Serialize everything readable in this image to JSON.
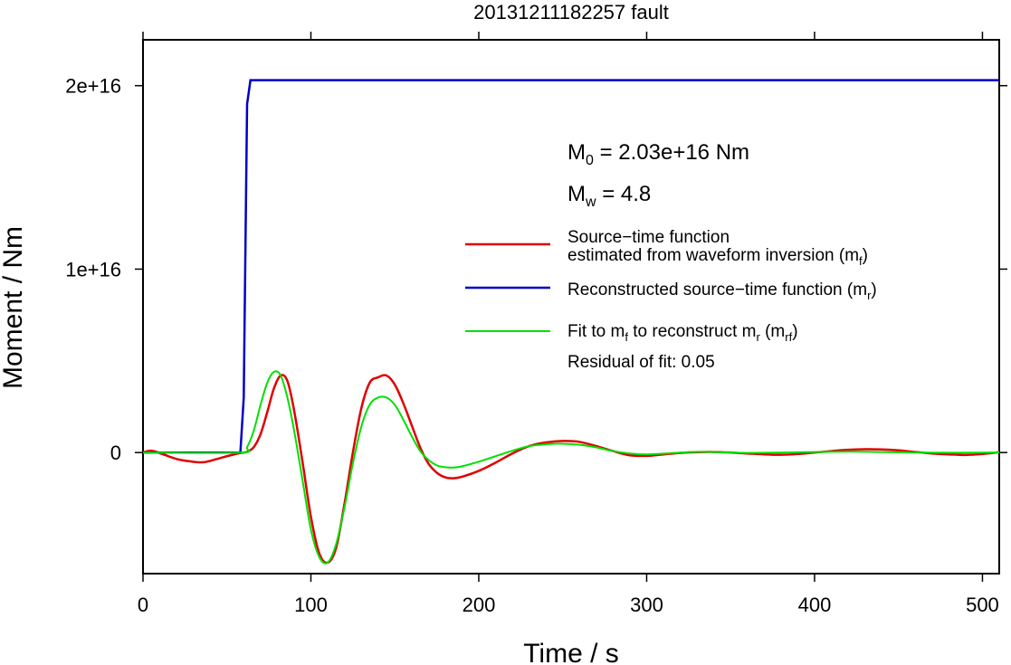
{
  "title": "20131211182257 fault",
  "chart_data": {
    "type": "line",
    "xlabel": "Time / s",
    "ylabel": "Moment / Nm",
    "xlim": [
      0,
      510
    ],
    "ylim": [
      -6600000000000000.0,
      2.25e+16
    ],
    "xticks": [
      0,
      100,
      200,
      300,
      400,
      500
    ],
    "xtick_labels": [
      "0",
      "100",
      "200",
      "300",
      "400",
      "500"
    ],
    "yticks": [
      0,
      1e+16,
      2e+16
    ],
    "ytick_labels": [
      "0",
      "1e+16",
      "2e+16"
    ],
    "grid": false,
    "legend_position": "right",
    "annotations": {
      "m0_symbol": "M",
      "m0_sub": "0",
      "m0_value": " = 2.03e+16 Nm",
      "mw_symbol": "M",
      "mw_sub": "w",
      "mw_value": " = 4.8",
      "residual": "Residual of fit: 0.05"
    },
    "legend": [
      {
        "key": "mf",
        "color": "#e00000",
        "line1": "Source−time function",
        "line2_pre": "estimated from waveform inversion (m",
        "line2_sub": "f",
        "line2_post": ")"
      },
      {
        "key": "mr",
        "color": "#0000c8",
        "line1_pre": "Reconstructed source−time function (m",
        "line1_sub": "r",
        "line1_post": ")"
      },
      {
        "key": "mrf",
        "color": "#00e000",
        "line1_pre": "Fit to m",
        "line1_sub1": "f",
        "line1_mid": " to reconstruct m",
        "line1_sub2": "r",
        "line1_mid2": " (m",
        "line1_sub3": "rf",
        "line1_post": ")"
      }
    ],
    "series": [
      {
        "key": "mf",
        "color": "#e00000",
        "x": [
          0,
          5,
          12,
          20,
          28,
          36,
          44,
          52,
          58,
          62,
          66,
          70,
          74,
          78,
          82,
          86,
          90,
          95,
          100,
          105,
          110,
          115,
          120,
          125,
          130,
          135,
          140,
          145,
          150,
          155,
          160,
          165,
          170,
          175,
          180,
          185,
          190,
          200,
          210,
          220,
          230,
          240,
          250,
          260,
          270,
          280,
          290,
          300,
          310,
          320,
          330,
          340,
          350,
          360,
          370,
          380,
          390,
          400,
          410,
          420,
          430,
          440,
          450,
          460,
          470,
          480,
          490,
          500,
          510
        ],
        "y": [
          0,
          100000000000000.0,
          -100000000000000.0,
          -350000000000000.0,
          -480000000000000.0,
          -530000000000000.0,
          -350000000000000.0,
          -150000000000000.0,
          -20000000000000.0,
          40000000000000.0,
          300000000000000.0,
          1000000000000000.0,
          2200000000000000.0,
          3500000000000000.0,
          4200000000000000.0,
          3900000000000000.0,
          2300000000000000.0,
          -500000000000000.0,
          -3500000000000000.0,
          -5500000000000000.0,
          -6000000000000000.0,
          -5200000000000000.0,
          -2800000000000000.0,
          0.0,
          2400000000000000.0,
          3800000000000000.0,
          4100000000000000.0,
          4200000000000000.0,
          3700000000000000.0,
          2700000000000000.0,
          1500000000000000.0,
          300000000000000.0,
          -600000000000000.0,
          -1100000000000000.0,
          -1350000000000000.0,
          -1400000000000000.0,
          -1320000000000000.0,
          -1000000000000000.0,
          -550000000000000.0,
          -50000000000000.0,
          350000000000000.0,
          550000000000000.0,
          630000000000000.0,
          580000000000000.0,
          350000000000000.0,
          80000000000000.0,
          -150000000000000.0,
          -180000000000000.0,
          -100000000000000.0,
          -20000000000000.0,
          20000000000000.0,
          30000000000000.0,
          0.0,
          -50000000000000.0,
          -100000000000000.0,
          -120000000000000.0,
          -80000000000000.0,
          0.0,
          80000000000000.0,
          150000000000000.0,
          180000000000000.0,
          170000000000000.0,
          120000000000000.0,
          30000000000000.0,
          -50000000000000.0,
          -100000000000000.0,
          -130000000000000.0,
          -80000000000000.0,
          20000000000000.0
        ]
      },
      {
        "key": "mr",
        "color": "#0000c8",
        "x": [
          0,
          58,
          60,
          62,
          64,
          510
        ],
        "y": [
          0,
          0,
          3000000000000000.0,
          1.9e+16,
          2.03e+16,
          2.03e+16
        ]
      },
      {
        "key": "mrf",
        "color": "#00e000",
        "x": [
          0,
          58,
          62,
          66,
          70,
          74,
          78,
          82,
          86,
          90,
          95,
          100,
          105,
          110,
          115,
          120,
          125,
          130,
          135,
          140,
          145,
          150,
          155,
          160,
          165,
          170,
          175,
          180,
          185,
          190,
          200,
          210,
          220,
          230,
          240,
          250,
          260,
          270,
          280,
          290,
          300,
          310,
          320,
          330,
          340,
          350,
          360,
          380,
          400,
          420,
          440,
          460,
          480,
          500,
          510
        ],
        "y": [
          0,
          0,
          300000000000000.0,
          1200000000000000.0,
          2600000000000000.0,
          3800000000000000.0,
          4400000000000000.0,
          4200000000000000.0,
          3000000000000000.0,
          1200000000000000.0,
          -1500000000000000.0,
          -4200000000000000.0,
          -5700000000000000.0,
          -6000000000000000.0,
          -5000000000000000.0,
          -3000000000000000.0,
          -600000000000000.0,
          1400000000000000.0,
          2600000000000000.0,
          3000000000000000.0,
          3000000000000000.0,
          2600000000000000.0,
          1800000000000000.0,
          900000000000000.0,
          100000000000000.0,
          -400000000000000.0,
          -700000000000000.0,
          -800000000000000.0,
          -820000000000000.0,
          -750000000000000.0,
          -500000000000000.0,
          -200000000000000.0,
          100000000000000.0,
          350000000000000.0,
          450000000000000.0,
          480000000000000.0,
          420000000000000.0,
          280000000000000.0,
          80000000000000.0,
          -50000000000000.0,
          -100000000000000.0,
          -60000000000000.0,
          0.0,
          40000000000000.0,
          30000000000000.0,
          0.0,
          -20000000000000.0,
          0.0,
          30000000000000.0,
          50000000000000.0,
          30000000000000.0,
          0.0,
          -10000000000000.0,
          0.0,
          10000000000000.0
        ]
      }
    ]
  }
}
